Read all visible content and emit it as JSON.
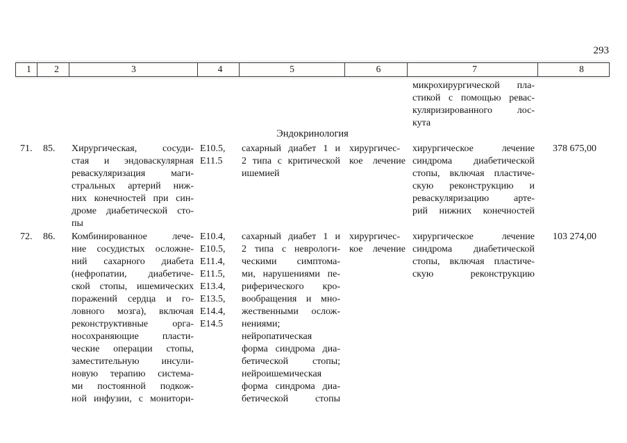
{
  "page_number": "293",
  "section_header": "Эндокринология",
  "table": {
    "header_columns": [
      "1",
      "2",
      "3",
      "4",
      "5",
      "6",
      "7",
      "8"
    ],
    "continuation_row": {
      "treatment_description": "микрохирургической пла-\nстикой с помощью ревас-\nкуляризированного лос-\nкута"
    },
    "rows": [
      {
        "row_number": "71.",
        "item_number": "85.",
        "treatment_name": "Хирургическая, сосуди-\nстая и эндоваскулярная\nреваскуляризация маги-\nстральных артерий ниж-\nних конечностей при син-\nдроме диабетической сто-\nпы",
        "icd_codes": "E10.5,\nE11.5",
        "diagnosis": "сахарный диабет 1 и\n2 типа с критической\nишемией",
        "treatment_type": "хирургичес-\nкое лечение",
        "treatment_description": "хирургическое лечение\nсиндрома диабетической\nстопы, включая пластиче-\nскую реконструкцию и\nреваскуляризацию арте-\nрий нижних конечностей",
        "price": "378 675,00"
      },
      {
        "row_number": "72.",
        "item_number": "86.",
        "treatment_name": "Комбинированное лече-\nние сосудистых осложне-\nний сахарного диабета\n(нефропатии, диабетиче-\nской стопы, ишемических\nпоражений сердца и го-\nловного мозга), включая\nреконструктивные орга-\nносохраняющие пласти-\nческие операции стопы,\nзаместительную инсули-\nновую терапию система-\nми постоянной подкож-\nной инфузии, с монитори-",
        "icd_codes": "E10.4,\nE10.5,\nE11.4,\nE11.5,\nE13.4,\nE13.5,\nE14.4,\nE14.5",
        "diagnosis": "сахарный диабет 1 и\n2 типа с неврологи-\nческими симптома-\nми, нарушениями пе-\nриферического кро-\nвообращения и мно-\nжественными ослож-\nнениями;\nнейропатическая\nформа синдрома диа-\nбетической стопы;\nнейроишемическая\nформа синдрома диа-\nбетической стопы",
        "treatment_type": "хирургичес-\nкое лечение",
        "treatment_description": "хирургическое лечение\nсиндрома диабетической\nстопы, включая пластиче-\nскую реконструкцию",
        "price": "103 274,00"
      }
    ]
  }
}
